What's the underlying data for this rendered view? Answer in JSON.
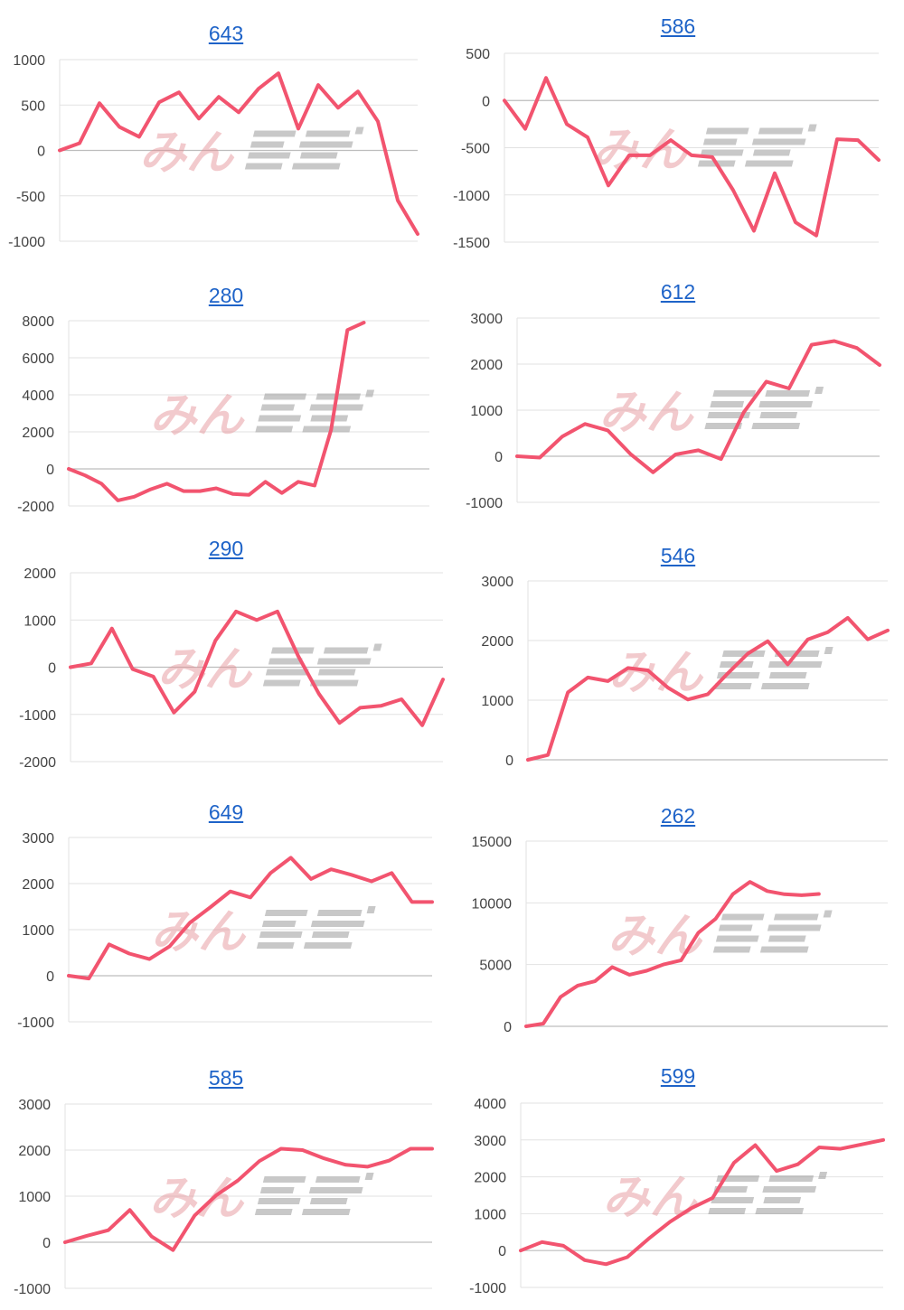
{
  "watermark": {
    "text": "みん",
    "color": "#e48b91",
    "stripe_color": "#9a9a9a"
  },
  "line_color": "#f2546f",
  "link_color": "#1e63c8",
  "chart_data": [
    {
      "type": "line",
      "title": "643",
      "ylim": [
        -1000,
        1000
      ],
      "yticks": [
        -1000,
        -500,
        0,
        500,
        1000
      ],
      "series": [
        {
          "values": [
            0,
            80,
            520,
            260,
            150,
            530,
            640,
            350,
            590,
            420,
            680,
            850,
            240,
            720,
            470,
            650,
            320,
            -550,
            -920
          ]
        }
      ]
    },
    {
      "type": "line",
      "title": "586",
      "ylim": [
        -1500,
        500
      ],
      "yticks": [
        -1500,
        -1000,
        -500,
        0,
        500
      ],
      "series": [
        {
          "values": [
            0,
            -300,
            240,
            -250,
            -390,
            -900,
            -580,
            -580,
            -420,
            -580,
            -600,
            -950,
            -1380,
            -770,
            -1290,
            -1430,
            -410,
            -420,
            -630
          ]
        }
      ]
    },
    {
      "type": "line",
      "title": "280",
      "ylim": [
        -2000,
        8000
      ],
      "yticks": [
        -2000,
        0,
        2000,
        4000,
        6000,
        8000
      ],
      "series": [
        {
          "values": [
            0,
            -350,
            -800,
            -1700,
            -1500,
            -1100,
            -800,
            -1200,
            -1200,
            -1050,
            -1350,
            -1400,
            -700,
            -1300,
            -700,
            -900,
            2100,
            7500,
            7900
          ]
        }
      ]
    },
    {
      "type": "line",
      "title": "612",
      "ylim": [
        -1000,
        3000
      ],
      "yticks": [
        -1000,
        0,
        1000,
        2000,
        3000
      ],
      "series": [
        {
          "values": [
            0,
            -30,
            430,
            700,
            560,
            50,
            -350,
            40,
            130,
            -60,
            950,
            1620,
            1470,
            2420,
            2500,
            2350,
            1980
          ]
        }
      ]
    },
    {
      "type": "line",
      "title": "290",
      "ylim": [
        -2000,
        2000
      ],
      "yticks": [
        -2000,
        -1000,
        0,
        1000,
        2000
      ],
      "series": [
        {
          "values": [
            0,
            80,
            820,
            -40,
            -200,
            -960,
            -520,
            560,
            1180,
            1000,
            1180,
            240,
            -560,
            -1180,
            -860,
            -820,
            -680,
            -1230,
            -260
          ]
        }
      ]
    },
    {
      "type": "line",
      "title": "546",
      "ylim": [
        0,
        3000
      ],
      "yticks": [
        0,
        1000,
        2000,
        3000
      ],
      "series": [
        {
          "values": [
            0,
            80,
            1130,
            1380,
            1320,
            1540,
            1500,
            1210,
            1010,
            1100,
            1450,
            1780,
            1990,
            1600,
            2020,
            2140,
            2380,
            2020,
            2170
          ]
        }
      ]
    },
    {
      "type": "line",
      "title": "649",
      "ylim": [
        -1000,
        3000
      ],
      "yticks": [
        -1000,
        0,
        1000,
        2000,
        3000
      ],
      "series": [
        {
          "values": [
            0,
            -60,
            680,
            480,
            360,
            640,
            1150,
            1480,
            1830,
            1700,
            2230,
            2560,
            2100,
            2310,
            2190,
            2050,
            2230,
            1600,
            1600
          ]
        }
      ]
    },
    {
      "type": "line",
      "title": "262",
      "ylim": [
        0,
        15000
      ],
      "yticks": [
        0,
        5000,
        10000,
        15000
      ],
      "series": [
        {
          "values": [
            0,
            220,
            2380,
            3300,
            3650,
            4800,
            4180,
            4500,
            5020,
            5350,
            7580,
            8700,
            10700,
            11700,
            10950,
            10700,
            10620,
            10720
          ]
        }
      ]
    },
    {
      "type": "line",
      "title": "585",
      "ylim": [
        -1000,
        3000
      ],
      "yticks": [
        -1000,
        0,
        1000,
        2000,
        3000
      ],
      "series": [
        {
          "values": [
            0,
            140,
            260,
            700,
            130,
            -170,
            580,
            1020,
            1340,
            1760,
            2030,
            2000,
            1820,
            1680,
            1640,
            1770,
            2030,
            2030
          ]
        }
      ]
    },
    {
      "type": "line",
      "title": "599",
      "ylim": [
        -1000,
        4000
      ],
      "yticks": [
        -1000,
        0,
        1000,
        2000,
        3000,
        4000
      ],
      "series": [
        {
          "values": [
            0,
            230,
            130,
            -260,
            -370,
            -180,
            320,
            780,
            1150,
            1430,
            2380,
            2860,
            2160,
            2340,
            2800,
            2760,
            2880,
            3000
          ]
        }
      ]
    }
  ]
}
